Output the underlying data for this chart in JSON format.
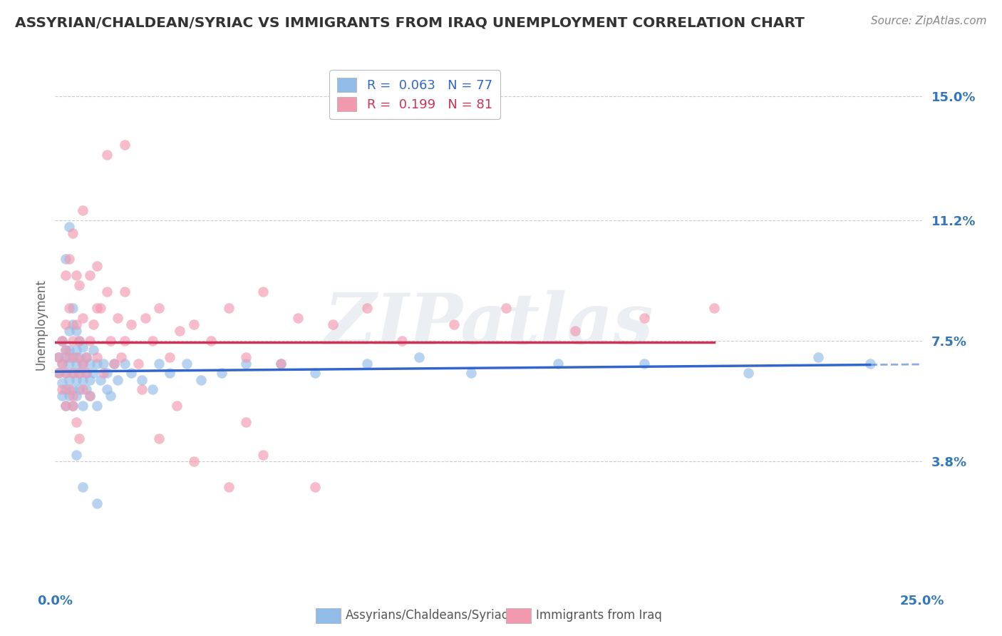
{
  "title": "ASSYRIAN/CHALDEAN/SYRIAC VS IMMIGRANTS FROM IRAQ UNEMPLOYMENT CORRELATION CHART",
  "source": "Source: ZipAtlas.com",
  "ylabel": "Unemployment",
  "xlim": [
    0.0,
    0.25
  ],
  "ylim": [
    0.0,
    0.16
  ],
  "yticks": [
    0.038,
    0.075,
    0.112,
    0.15
  ],
  "ytick_labels": [
    "3.8%",
    "7.5%",
    "11.2%",
    "15.0%"
  ],
  "series1_color": "#92bce8",
  "series2_color": "#f299b0",
  "series1_trend_color": "#3366cc",
  "series2_trend_color": "#cc3355",
  "background_color": "#ffffff",
  "grid_color": "#cccccc",
  "title_color": "#333333",
  "axis_label_color": "#3377bb",
  "watermark": "ZIPatlas",
  "watermark_color": "#c8d0dc",
  "legend_label1": "R =  0.063   N = 77",
  "legend_label2": "R =  0.199   N = 81",
  "legend_color1": "#3366cc",
  "legend_color2": "#cc3355",
  "bottom_label1": "Assyrians/Chaldeans/Syriacs",
  "bottom_label2": "Immigrants from Iraq",
  "blue_scatter_x": [
    0.001,
    0.001,
    0.002,
    0.002,
    0.002,
    0.002,
    0.003,
    0.003,
    0.003,
    0.003,
    0.003,
    0.004,
    0.004,
    0.004,
    0.004,
    0.004,
    0.005,
    0.005,
    0.005,
    0.005,
    0.005,
    0.005,
    0.006,
    0.006,
    0.006,
    0.006,
    0.006,
    0.007,
    0.007,
    0.007,
    0.007,
    0.008,
    0.008,
    0.008,
    0.008,
    0.009,
    0.009,
    0.009,
    0.01,
    0.01,
    0.01,
    0.011,
    0.011,
    0.012,
    0.012,
    0.013,
    0.014,
    0.015,
    0.015,
    0.016,
    0.017,
    0.018,
    0.02,
    0.022,
    0.025,
    0.028,
    0.03,
    0.033,
    0.038,
    0.042,
    0.048,
    0.055,
    0.065,
    0.075,
    0.09,
    0.105,
    0.12,
    0.145,
    0.17,
    0.2,
    0.22,
    0.235,
    0.003,
    0.004,
    0.006,
    0.008,
    0.012
  ],
  "blue_scatter_y": [
    0.065,
    0.07,
    0.068,
    0.062,
    0.058,
    0.075,
    0.07,
    0.065,
    0.06,
    0.072,
    0.055,
    0.068,
    0.063,
    0.078,
    0.058,
    0.072,
    0.065,
    0.07,
    0.06,
    0.055,
    0.08,
    0.085,
    0.068,
    0.063,
    0.058,
    0.072,
    0.078,
    0.065,
    0.07,
    0.06,
    0.075,
    0.063,
    0.068,
    0.055,
    0.073,
    0.065,
    0.07,
    0.06,
    0.068,
    0.063,
    0.058,
    0.072,
    0.065,
    0.068,
    0.055,
    0.063,
    0.068,
    0.06,
    0.065,
    0.058,
    0.068,
    0.063,
    0.068,
    0.065,
    0.063,
    0.06,
    0.068,
    0.065,
    0.068,
    0.063,
    0.065,
    0.068,
    0.068,
    0.065,
    0.068,
    0.07,
    0.065,
    0.068,
    0.068,
    0.065,
    0.07,
    0.068,
    0.1,
    0.11,
    0.04,
    0.03,
    0.025
  ],
  "pink_scatter_x": [
    0.001,
    0.001,
    0.002,
    0.002,
    0.002,
    0.003,
    0.003,
    0.003,
    0.003,
    0.004,
    0.004,
    0.004,
    0.005,
    0.005,
    0.005,
    0.006,
    0.006,
    0.006,
    0.007,
    0.007,
    0.007,
    0.008,
    0.008,
    0.009,
    0.009,
    0.01,
    0.01,
    0.011,
    0.012,
    0.013,
    0.014,
    0.015,
    0.016,
    0.017,
    0.018,
    0.019,
    0.02,
    0.022,
    0.024,
    0.026,
    0.028,
    0.03,
    0.033,
    0.036,
    0.04,
    0.045,
    0.05,
    0.055,
    0.06,
    0.065,
    0.07,
    0.08,
    0.09,
    0.1,
    0.115,
    0.13,
    0.15,
    0.17,
    0.19,
    0.003,
    0.004,
    0.005,
    0.006,
    0.007,
    0.008,
    0.01,
    0.012,
    0.015,
    0.02,
    0.025,
    0.03,
    0.04,
    0.05,
    0.06,
    0.005,
    0.008,
    0.012,
    0.02,
    0.035,
    0.055,
    0.075
  ],
  "pink_scatter_y": [
    0.065,
    0.07,
    0.068,
    0.075,
    0.06,
    0.072,
    0.065,
    0.08,
    0.055,
    0.07,
    0.085,
    0.06,
    0.065,
    0.075,
    0.058,
    0.07,
    0.095,
    0.08,
    0.065,
    0.092,
    0.075,
    0.068,
    0.082,
    0.07,
    0.065,
    0.075,
    0.058,
    0.08,
    0.07,
    0.085,
    0.065,
    0.09,
    0.075,
    0.068,
    0.082,
    0.07,
    0.075,
    0.08,
    0.068,
    0.082,
    0.075,
    0.085,
    0.07,
    0.078,
    0.08,
    0.075,
    0.085,
    0.07,
    0.09,
    0.068,
    0.082,
    0.08,
    0.085,
    0.075,
    0.08,
    0.085,
    0.078,
    0.082,
    0.085,
    0.095,
    0.1,
    0.055,
    0.05,
    0.045,
    0.06,
    0.095,
    0.085,
    0.132,
    0.135,
    0.06,
    0.045,
    0.038,
    0.03,
    0.04,
    0.108,
    0.115,
    0.098,
    0.09,
    0.055,
    0.05,
    0.03
  ]
}
